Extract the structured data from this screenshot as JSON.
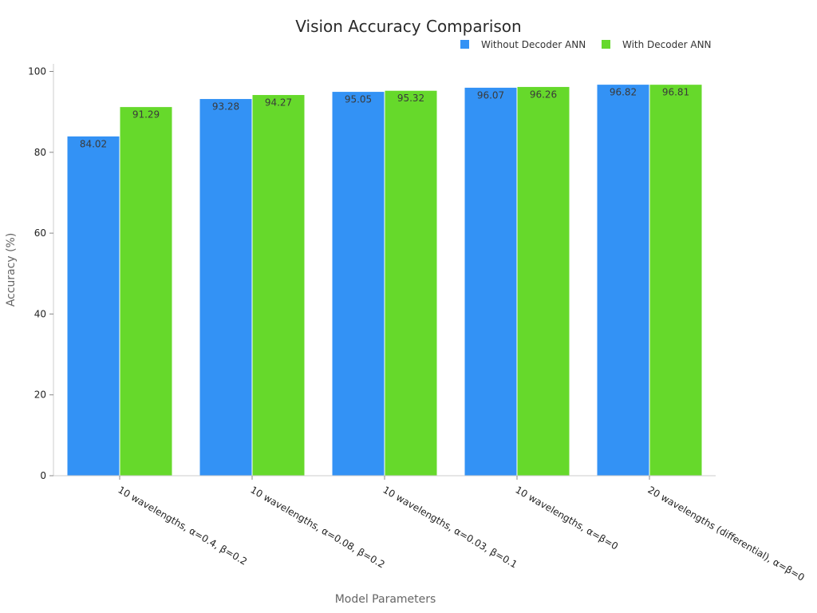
{
  "chart_data": {
    "type": "bar",
    "title": "Vision Accuracy Comparison",
    "xlabel": "Model Parameters",
    "ylabel": "Accuracy (%)",
    "ylim": [
      0,
      100
    ],
    "yticks": [
      0,
      20,
      40,
      60,
      80,
      100
    ],
    "grid": false,
    "legend_position": "top-right",
    "categories": [
      "10 wavelengths, α=0.4, β=0.2",
      "10 wavelengths, α=0.08, β=0.2",
      "10 wavelengths, α=0.03, β=0.1",
      "10 wavelengths, α=β=0",
      "20 wavelengths (differential), α=β=0"
    ],
    "series": [
      {
        "name": "Without Decoder ANN",
        "color": "#3392f5",
        "values": [
          84.02,
          93.28,
          95.05,
          96.07,
          96.82
        ]
      },
      {
        "name": "With Decoder ANN",
        "color": "#66d92b",
        "values": [
          91.29,
          94.27,
          95.32,
          96.26,
          96.81
        ]
      }
    ]
  }
}
